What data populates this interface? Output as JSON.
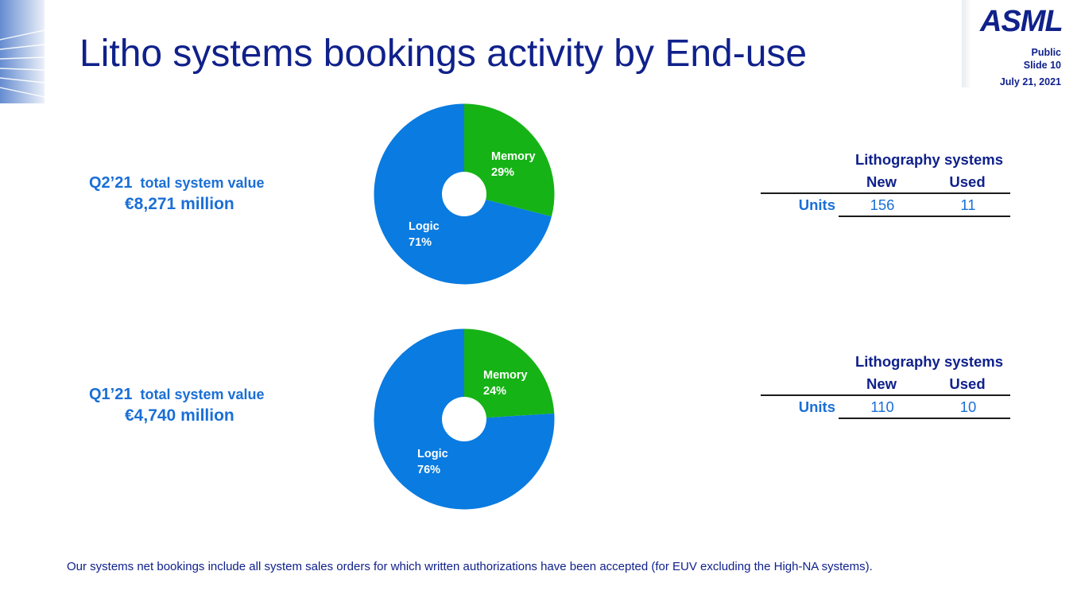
{
  "slide": {
    "title": "Litho systems bookings activity by End-use",
    "logo": "ASML",
    "classification": "Public",
    "slide_number": "Slide 10",
    "date": "July 21, 2021",
    "footnote": "Our systems net bookings include all system sales orders for which written authorizations have been accepted (for EUV excluding the High-NA systems)."
  },
  "colors": {
    "logic": "#0a7be0",
    "memory": "#16b316",
    "navy": "#10218b",
    "blue": "#1a6fd6"
  },
  "sections": [
    {
      "period": "Q2’21",
      "value_label": "total system value",
      "amount": "€8,271 million",
      "table": {
        "header": "Lithography systems",
        "columns": [
          "New",
          "Used"
        ],
        "row_label": "Units",
        "values": [
          "156",
          "11"
        ]
      }
    },
    {
      "period": "Q1’21",
      "value_label": "total system value",
      "amount": "€4,740 million",
      "table": {
        "header": "Lithography systems",
        "columns": [
          "New",
          "Used"
        ],
        "row_label": "Units",
        "values": [
          "110",
          "10"
        ]
      }
    }
  ],
  "chart_data": [
    {
      "type": "pie",
      "title": "",
      "donut": true,
      "slices": [
        {
          "label": "Memory",
          "value": 29,
          "value_label": "29%",
          "color": "#16b316"
        },
        {
          "label": "Logic",
          "value": 71,
          "value_label": "71%",
          "color": "#0a7be0"
        }
      ]
    },
    {
      "type": "pie",
      "title": "",
      "donut": true,
      "slices": [
        {
          "label": "Memory",
          "value": 24,
          "value_label": "24%",
          "color": "#16b316"
        },
        {
          "label": "Logic",
          "value": 76,
          "value_label": "76%",
          "color": "#0a7be0"
        }
      ]
    }
  ]
}
